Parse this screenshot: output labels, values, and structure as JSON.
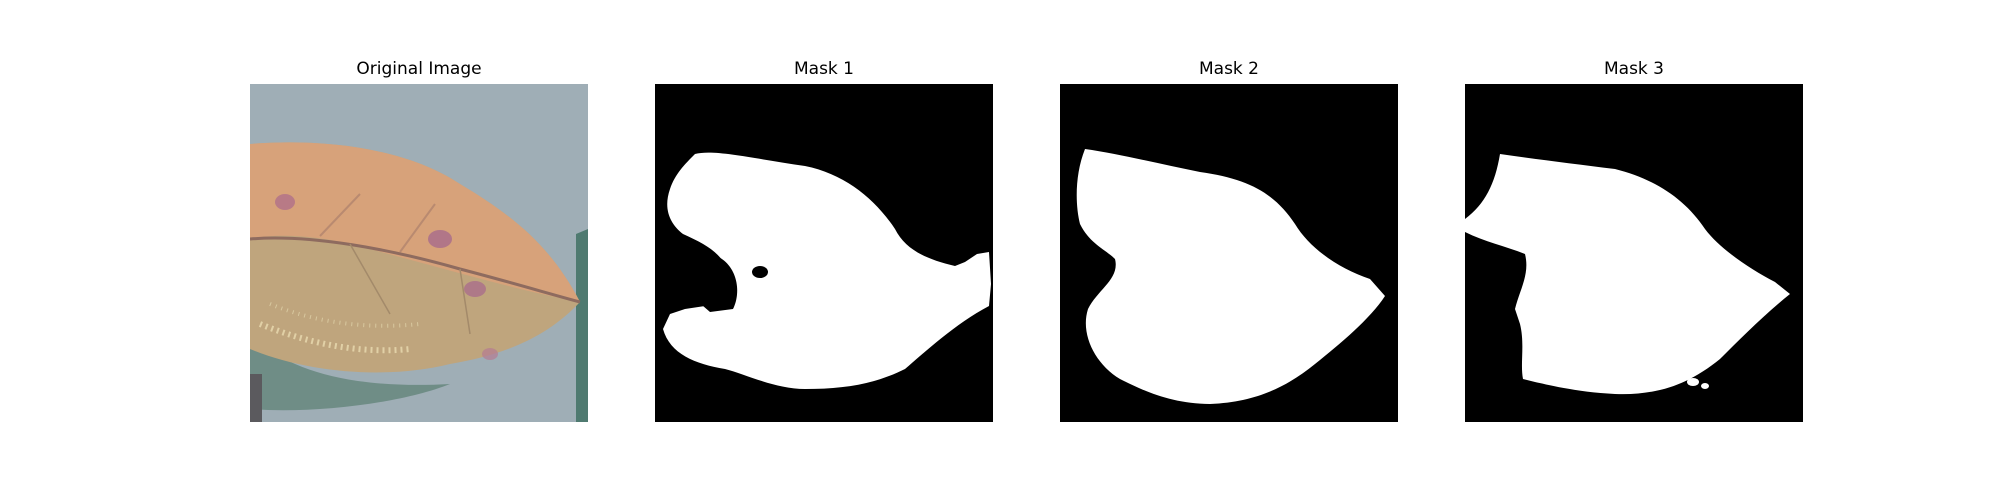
{
  "figure": {
    "panels": [
      {
        "title": "Original Image"
      },
      {
        "title": "Mask 1"
      },
      {
        "title": "Mask 2"
      },
      {
        "title": "Mask 3"
      }
    ],
    "colors": {
      "background": "#ffffff",
      "mask_background": "#000000",
      "mask_foreground": "#ffffff",
      "photo_background": "#9aa9b2",
      "leaf_upper": "#d8a67c",
      "leaf_lower": "#b9a27a",
      "leaf_edge": "#5a7d73"
    }
  }
}
